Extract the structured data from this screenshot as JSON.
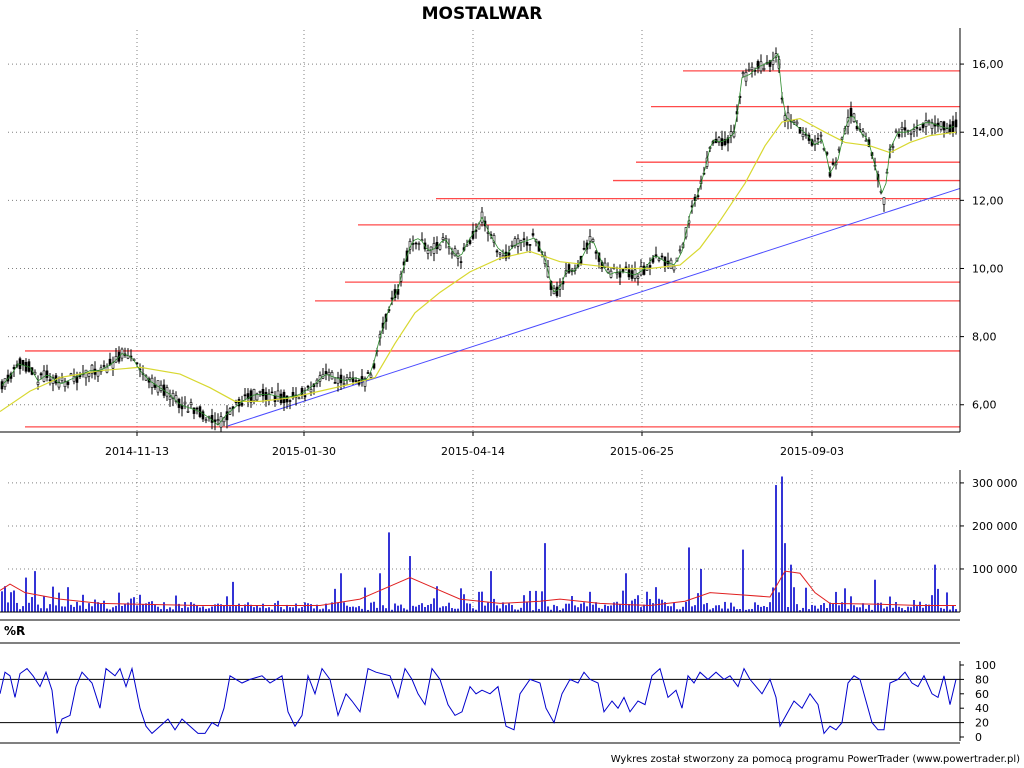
{
  "chart_data": [
    {
      "type": "candlestick",
      "title": "MOSTALWAR",
      "x_ticks": [
        "2014-11-13",
        "2015-01-30",
        "2015-04-14",
        "2015-06-25",
        "2015-09-03"
      ],
      "y_ticks": [
        "6,00",
        "8,00",
        "10,00",
        "12,00",
        "14,00",
        "16,00"
      ],
      "ylim": [
        5.2,
        17.0
      ],
      "grid": true,
      "price_path": [
        [
          0,
          6.5
        ],
        [
          12,
          6.9
        ],
        [
          18,
          7.2
        ],
        [
          30,
          7.1
        ],
        [
          38,
          6.7
        ],
        [
          48,
          6.9
        ],
        [
          60,
          6.6
        ],
        [
          75,
          6.8
        ],
        [
          90,
          7.0
        ],
        [
          100,
          7.0
        ],
        [
          112,
          7.2
        ],
        [
          122,
          7.5
        ],
        [
          132,
          7.4
        ],
        [
          140,
          7.0
        ],
        [
          150,
          6.7
        ],
        [
          160,
          6.5
        ],
        [
          170,
          6.3
        ],
        [
          180,
          6.0
        ],
        [
          190,
          5.9
        ],
        [
          200,
          5.8
        ],
        [
          210,
          5.6
        ],
        [
          218,
          5.4
        ],
        [
          226,
          5.7
        ],
        [
          234,
          5.9
        ],
        [
          242,
          6.1
        ],
        [
          255,
          6.3
        ],
        [
          270,
          6.3
        ],
        [
          285,
          6.2
        ],
        [
          300,
          6.3
        ],
        [
          315,
          6.6
        ],
        [
          325,
          6.9
        ],
        [
          335,
          6.8
        ],
        [
          345,
          6.7
        ],
        [
          355,
          6.8
        ],
        [
          365,
          6.7
        ],
        [
          372,
          7.0
        ],
        [
          380,
          8.0
        ],
        [
          390,
          8.9
        ],
        [
          398,
          9.4
        ],
        [
          405,
          10.2
        ],
        [
          412,
          10.8
        ],
        [
          420,
          10.9
        ],
        [
          428,
          10.5
        ],
        [
          436,
          10.6
        ],
        [
          445,
          10.9
        ],
        [
          452,
          10.5
        ],
        [
          460,
          10.3
        ],
        [
          468,
          10.8
        ],
        [
          475,
          11.1
        ],
        [
          482,
          11.5
        ],
        [
          490,
          11.0
        ],
        [
          498,
          10.6
        ],
        [
          506,
          10.4
        ],
        [
          515,
          10.7
        ],
        [
          525,
          10.8
        ],
        [
          535,
          10.9
        ],
        [
          545,
          10.3
        ],
        [
          553,
          9.3
        ],
        [
          560,
          9.4
        ],
        [
          567,
          10.0
        ],
        [
          575,
          9.9
        ],
        [
          585,
          10.5
        ],
        [
          592,
          10.9
        ],
        [
          600,
          10.3
        ],
        [
          608,
          9.8
        ],
        [
          616,
          9.9
        ],
        [
          625,
          9.9
        ],
        [
          635,
          9.8
        ],
        [
          645,
          10.0
        ],
        [
          655,
          10.4
        ],
        [
          665,
          10.2
        ],
        [
          675,
          10.1
        ],
        [
          682,
          10.5
        ],
        [
          690,
          11.6
        ],
        [
          698,
          12.2
        ],
        [
          705,
          12.9
        ],
        [
          712,
          13.8
        ],
        [
          720,
          13.7
        ],
        [
          728,
          13.8
        ],
        [
          735,
          14.0
        ],
        [
          742,
          15.6
        ],
        [
          750,
          15.7
        ],
        [
          757,
          15.9
        ],
        [
          765,
          16.0
        ],
        [
          772,
          16.1
        ],
        [
          778,
          16.3
        ],
        [
          784,
          14.5
        ],
        [
          792,
          14.3
        ],
        [
          800,
          14.1
        ],
        [
          808,
          13.9
        ],
        [
          815,
          13.6
        ],
        [
          823,
          13.8
        ],
        [
          830,
          12.8
        ],
        [
          838,
          13.2
        ],
        [
          845,
          14.1
        ],
        [
          852,
          14.6
        ],
        [
          860,
          14.0
        ],
        [
          868,
          13.8
        ],
        [
          876,
          12.9
        ],
        [
          884,
          12.0
        ],
        [
          890,
          13.5
        ],
        [
          898,
          14.0
        ],
        [
          908,
          14.0
        ],
        [
          918,
          14.2
        ],
        [
          928,
          14.3
        ],
        [
          938,
          14.2
        ],
        [
          948,
          14.1
        ],
        [
          956,
          14.2
        ]
      ],
      "ma_path": [
        [
          0,
          5.8
        ],
        [
          30,
          6.4
        ],
        [
          60,
          6.8
        ],
        [
          100,
          7.0
        ],
        [
          140,
          7.1
        ],
        [
          180,
          6.9
        ],
        [
          210,
          6.5
        ],
        [
          235,
          6.1
        ],
        [
          260,
          6.1
        ],
        [
          290,
          6.2
        ],
        [
          320,
          6.4
        ],
        [
          350,
          6.6
        ],
        [
          375,
          6.8
        ],
        [
          395,
          7.8
        ],
        [
          415,
          8.7
        ],
        [
          440,
          9.3
        ],
        [
          470,
          9.9
        ],
        [
          500,
          10.3
        ],
        [
          530,
          10.5
        ],
        [
          560,
          10.2
        ],
        [
          590,
          10.1
        ],
        [
          620,
          10.0
        ],
        [
          650,
          10.0
        ],
        [
          680,
          10.1
        ],
        [
          700,
          10.6
        ],
        [
          720,
          11.4
        ],
        [
          745,
          12.5
        ],
        [
          765,
          13.6
        ],
        [
          782,
          14.3
        ],
        [
          800,
          14.4
        ],
        [
          825,
          14.0
        ],
        [
          845,
          13.7
        ],
        [
          870,
          13.6
        ],
        [
          890,
          13.4
        ],
        [
          910,
          13.7
        ],
        [
          930,
          13.9
        ],
        [
          956,
          14.0
        ]
      ],
      "support_lines": [
        {
          "x0": 25,
          "level": 5.35
        },
        {
          "x0": 25,
          "level": 7.58
        },
        {
          "x0": 315,
          "level": 9.05
        },
        {
          "x0": 345,
          "level": 9.6
        },
        {
          "x0": 358,
          "level": 11.28
        },
        {
          "x0": 436,
          "level": 12.05
        },
        {
          "x0": 613,
          "level": 12.58
        },
        {
          "x0": 636,
          "level": 13.12
        },
        {
          "x0": 651,
          "level": 14.75
        },
        {
          "x0": 683,
          "level": 15.8
        }
      ],
      "trend_line": {
        "from": [
          228,
          5.38
        ],
        "to": [
          960,
          12.35
        ]
      },
      "colors": {
        "up": "#000000",
        "down": "#000000",
        "trend": "#4a4aff",
        "support": "#ff4a4a",
        "ma": "#d8d830"
      }
    },
    {
      "type": "bar",
      "name": "volume",
      "y_ticks": [
        "100 000",
        "200 000",
        "300 000"
      ],
      "ylim": [
        0,
        330000
      ],
      "spikes": [
        [
          6,
          60000
        ],
        [
          14,
          50000
        ],
        [
          26,
          80000
        ],
        [
          34,
          95000
        ],
        [
          60,
          45000
        ],
        [
          84,
          40000
        ],
        [
          118,
          45000
        ],
        [
          140,
          40000
        ],
        [
          232,
          70000
        ],
        [
          342,
          90000
        ],
        [
          380,
          90000
        ],
        [
          390,
          185000
        ],
        [
          410,
          130000
        ],
        [
          460,
          55000
        ],
        [
          490,
          95000
        ],
        [
          544,
          160000
        ],
        [
          625,
          90000
        ],
        [
          690,
          150000
        ],
        [
          700,
          100000
        ],
        [
          742,
          145000
        ],
        [
          775,
          295000
        ],
        [
          781,
          315000
        ],
        [
          786,
          160000
        ],
        [
          790,
          110000
        ],
        [
          846,
          55000
        ],
        [
          874,
          75000
        ],
        [
          934,
          110000
        ]
      ],
      "avg_path": [
        [
          0,
          50000
        ],
        [
          10,
          65000
        ],
        [
          25,
          45000
        ],
        [
          60,
          30000
        ],
        [
          100,
          20000
        ],
        [
          140,
          18000
        ],
        [
          200,
          15000
        ],
        [
          260,
          15000
        ],
        [
          320,
          15000
        ],
        [
          360,
          30000
        ],
        [
          390,
          60000
        ],
        [
          410,
          80000
        ],
        [
          430,
          60000
        ],
        [
          460,
          30000
        ],
        [
          500,
          20000
        ],
        [
          540,
          25000
        ],
        [
          560,
          30000
        ],
        [
          600,
          20000
        ],
        [
          650,
          15000
        ],
        [
          685,
          25000
        ],
        [
          710,
          45000
        ],
        [
          740,
          40000
        ],
        [
          770,
          35000
        ],
        [
          785,
          95000
        ],
        [
          800,
          90000
        ],
        [
          815,
          45000
        ],
        [
          830,
          20000
        ],
        [
          880,
          18000
        ],
        [
          920,
          15000
        ],
        [
          956,
          15000
        ]
      ],
      "colors": {
        "bar": "#0000cc",
        "avg": "#e02020"
      }
    },
    {
      "type": "line",
      "name": "%R",
      "title": "%R",
      "y_ticks": [
        "0",
        "20",
        "40",
        "60",
        "80",
        "100"
      ],
      "ylim": [
        0,
        100
      ],
      "reference_levels": [
        20,
        80
      ],
      "values": [
        [
          0,
          60
        ],
        [
          5,
          90
        ],
        [
          10,
          85
        ],
        [
          15,
          55
        ],
        [
          20,
          88
        ],
        [
          27,
          95
        ],
        [
          33,
          85
        ],
        [
          40,
          70
        ],
        [
          46,
          90
        ],
        [
          52,
          65
        ],
        [
          57,
          5
        ],
        [
          62,
          25
        ],
        [
          70,
          30
        ],
        [
          76,
          70
        ],
        [
          82,
          90
        ],
        [
          92,
          75
        ],
        [
          100,
          40
        ],
        [
          106,
          95
        ],
        [
          115,
          85
        ],
        [
          120,
          95
        ],
        [
          126,
          70
        ],
        [
          132,
          95
        ],
        [
          140,
          40
        ],
        [
          146,
          15
        ],
        [
          152,
          5
        ],
        [
          160,
          15
        ],
        [
          168,
          25
        ],
        [
          175,
          10
        ],
        [
          182,
          25
        ],
        [
          190,
          15
        ],
        [
          198,
          5
        ],
        [
          205,
          5
        ],
        [
          212,
          20
        ],
        [
          218,
          15
        ],
        [
          224,
          40
        ],
        [
          230,
          85
        ],
        [
          236,
          80
        ],
        [
          242,
          75
        ],
        [
          250,
          80
        ],
        [
          262,
          85
        ],
        [
          270,
          75
        ],
        [
          282,
          85
        ],
        [
          288,
          35
        ],
        [
          295,
          15
        ],
        [
          302,
          30
        ],
        [
          308,
          85
        ],
        [
          315,
          60
        ],
        [
          322,
          95
        ],
        [
          330,
          80
        ],
        [
          338,
          30
        ],
        [
          346,
          60
        ],
        [
          352,
          50
        ],
        [
          360,
          35
        ],
        [
          368,
          95
        ],
        [
          376,
          90
        ],
        [
          390,
          85
        ],
        [
          398,
          55
        ],
        [
          405,
          95
        ],
        [
          412,
          80
        ],
        [
          418,
          60
        ],
        [
          425,
          45
        ],
        [
          432,
          95
        ],
        [
          440,
          80
        ],
        [
          448,
          45
        ],
        [
          455,
          30
        ],
        [
          462,
          35
        ],
        [
          470,
          70
        ],
        [
          476,
          60
        ],
        [
          482,
          65
        ],
        [
          490,
          60
        ],
        [
          498,
          70
        ],
        [
          506,
          15
        ],
        [
          514,
          10
        ],
        [
          520,
          60
        ],
        [
          530,
          80
        ],
        [
          540,
          75
        ],
        [
          546,
          40
        ],
        [
          554,
          20
        ],
        [
          562,
          60
        ],
        [
          570,
          80
        ],
        [
          578,
          75
        ],
        [
          584,
          90
        ],
        [
          590,
          80
        ],
        [
          598,
          75
        ],
        [
          604,
          35
        ],
        [
          612,
          50
        ],
        [
          618,
          40
        ],
        [
          624,
          55
        ],
        [
          630,
          35
        ],
        [
          638,
          50
        ],
        [
          645,
          45
        ],
        [
          652,
          85
        ],
        [
          660,
          95
        ],
        [
          668,
          55
        ],
        [
          676,
          65
        ],
        [
          682,
          40
        ],
        [
          688,
          85
        ],
        [
          694,
          75
        ],
        [
          700,
          90
        ],
        [
          708,
          80
        ],
        [
          716,
          90
        ],
        [
          724,
          80
        ],
        [
          730,
          85
        ],
        [
          738,
          70
        ],
        [
          744,
          95
        ],
        [
          750,
          80
        ],
        [
          756,
          70
        ],
        [
          762,
          60
        ],
        [
          770,
          80
        ],
        [
          776,
          55
        ],
        [
          780,
          15
        ],
        [
          786,
          30
        ],
        [
          794,
          50
        ],
        [
          802,
          40
        ],
        [
          810,
          60
        ],
        [
          818,
          45
        ],
        [
          824,
          5
        ],
        [
          830,
          15
        ],
        [
          836,
          10
        ],
        [
          842,
          20
        ],
        [
          848,
          75
        ],
        [
          854,
          85
        ],
        [
          860,
          80
        ],
        [
          866,
          50
        ],
        [
          872,
          20
        ],
        [
          878,
          10
        ],
        [
          884,
          10
        ],
        [
          890,
          75
        ],
        [
          898,
          80
        ],
        [
          905,
          90
        ],
        [
          912,
          75
        ],
        [
          918,
          70
        ],
        [
          924,
          85
        ],
        [
          932,
          60
        ],
        [
          938,
          55
        ],
        [
          944,
          85
        ],
        [
          950,
          45
        ],
        [
          956,
          80
        ]
      ],
      "colors": {
        "line": "#0000cc"
      }
    }
  ],
  "credit": "Wykres został stworzony za pomocą programu PowerTrader (www.powertrader.pl)"
}
